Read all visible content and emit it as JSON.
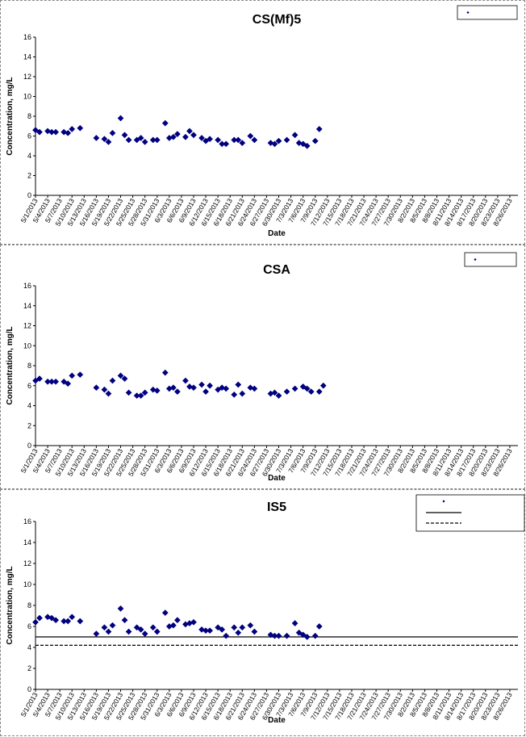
{
  "chart_data": [
    {
      "type": "scatter",
      "title": "CS(Mf)5",
      "xlabel": "Date",
      "ylabel": "Concentration, mg/L",
      "ylim": [
        0,
        16
      ],
      "yticks": [
        0,
        2,
        4,
        6,
        8,
        10,
        12,
        14,
        16
      ],
      "xlim": [
        "5/1/2013",
        "8/28/2013"
      ],
      "xticks": [
        "5/1/2013",
        "5/4/2013",
        "5/7/2013",
        "5/10/2013",
        "5/13/2013",
        "5/16/2013",
        "5/19/2013",
        "5/22/2013",
        "5/25/2013",
        "5/28/2013",
        "5/31/2013",
        "6/3/2013",
        "6/6/2013",
        "6/9/2013",
        "6/12/2013",
        "6/15/2013",
        "6/18/2013",
        "6/21/2013",
        "6/24/2013",
        "6/27/2013",
        "6/30/2013",
        "7/3/2013",
        "7/6/2013",
        "7/9/2013",
        "7/12/2013",
        "7/15/2013",
        "7/18/2013",
        "7/21/2013",
        "7/24/2013",
        "7/27/2013",
        "7/30/2013",
        "8/2/2013",
        "8/5/2013",
        "8/8/2013",
        "8/11/2013",
        "8/14/2013",
        "8/17/2013",
        "8/20/2013",
        "8/23/2013",
        "8/26/2013"
      ],
      "grid": false,
      "legend": "top-right",
      "series": [
        {
          "marker": "diamond",
          "color": "#000080",
          "points": [
            [
              "5/1/2013",
              6.6
            ],
            [
              "5/2/2013",
              6.4
            ],
            [
              "5/4/2013",
              6.5
            ],
            [
              "5/5/2013",
              6.4
            ],
            [
              "5/6/2013",
              6.4
            ],
            [
              "5/8/2013",
              6.4
            ],
            [
              "5/9/2013",
              6.3
            ],
            [
              "5/10/2013",
              6.7
            ],
            [
              "5/12/2013",
              6.8
            ],
            [
              "5/16/2013",
              5.8
            ],
            [
              "5/18/2013",
              5.7
            ],
            [
              "5/19/2013",
              5.4
            ],
            [
              "5/20/2013",
              6.3
            ],
            [
              "5/22/2013",
              7.8
            ],
            [
              "5/23/2013",
              6.1
            ],
            [
              "5/24/2013",
              5.6
            ],
            [
              "5/26/2013",
              5.6
            ],
            [
              "5/27/2013",
              5.8
            ],
            [
              "5/28/2013",
              5.4
            ],
            [
              "5/30/2013",
              5.6
            ],
            [
              "5/31/2013",
              5.6
            ],
            [
              "6/2/2013",
              7.3
            ],
            [
              "6/3/2013",
              5.8
            ],
            [
              "6/4/2013",
              5.9
            ],
            [
              "6/5/2013",
              6.2
            ],
            [
              "6/7/2013",
              5.9
            ],
            [
              "6/8/2013",
              6.5
            ],
            [
              "6/9/2013",
              6.1
            ],
            [
              "6/11/2013",
              5.8
            ],
            [
              "6/12/2013",
              5.5
            ],
            [
              "6/13/2013",
              5.7
            ],
            [
              "6/15/2013",
              5.6
            ],
            [
              "6/16/2013",
              5.2
            ],
            [
              "6/17/2013",
              5.2
            ],
            [
              "6/19/2013",
              5.6
            ],
            [
              "6/20/2013",
              5.6
            ],
            [
              "6/21/2013",
              5.3
            ],
            [
              "6/23/2013",
              6.0
            ],
            [
              "6/24/2013",
              5.6
            ],
            [
              "6/28/2013",
              5.3
            ],
            [
              "6/29/2013",
              5.2
            ],
            [
              "6/30/2013",
              5.5
            ],
            [
              "7/2/2013",
              5.6
            ],
            [
              "7/4/2013",
              6.1
            ],
            [
              "7/5/2013",
              5.3
            ],
            [
              "7/6/2013",
              5.2
            ],
            [
              "7/7/2013",
              5.0
            ],
            [
              "7/9/2013",
              5.5
            ],
            [
              "7/10/2013",
              6.7
            ]
          ]
        }
      ]
    },
    {
      "type": "scatter",
      "title": "CSA",
      "xlabel": "Date",
      "ylabel": "Concentration, mg/L",
      "ylim": [
        0,
        16
      ],
      "yticks": [
        0,
        2,
        4,
        6,
        8,
        10,
        12,
        14,
        16
      ],
      "xlim": [
        "5/1/2013",
        "8/28/2013"
      ],
      "xticks": [
        "5/1/2013",
        "5/4/2013",
        "5/7/2013",
        "5/10/2013",
        "5/13/2013",
        "5/16/2013",
        "5/19/2013",
        "5/22/2013",
        "5/25/2013",
        "5/28/2013",
        "5/31/2013",
        "6/3/2013",
        "6/6/2013",
        "6/9/2013",
        "6/12/2013",
        "6/15/2013",
        "6/18/2013",
        "6/21/2013",
        "6/24/2013",
        "6/27/2013",
        "6/30/2013",
        "7/3/2013",
        "7/6/2013",
        "7/9/2013",
        "7/12/2013",
        "7/15/2013",
        "7/18/2013",
        "7/21/2013",
        "7/24/2013",
        "7/27/2013",
        "7/30/2013",
        "8/2/2013",
        "8/5/2013",
        "8/8/2013",
        "8/11/2013",
        "8/14/2013",
        "8/17/2013",
        "8/20/2013",
        "8/23/2013",
        "8/26/2013"
      ],
      "grid": false,
      "legend": "top-right",
      "series": [
        {
          "marker": "diamond",
          "color": "#000080",
          "points": [
            [
              "5/1/2013",
              6.5
            ],
            [
              "5/2/2013",
              6.7
            ],
            [
              "5/4/2013",
              6.4
            ],
            [
              "5/5/2013",
              6.4
            ],
            [
              "5/6/2013",
              6.4
            ],
            [
              "5/8/2013",
              6.4
            ],
            [
              "5/9/2013",
              6.2
            ],
            [
              "5/10/2013",
              7.0
            ],
            [
              "5/12/2013",
              7.1
            ],
            [
              "5/16/2013",
              5.8
            ],
            [
              "5/18/2013",
              5.6
            ],
            [
              "5/19/2013",
              5.2
            ],
            [
              "5/20/2013",
              6.5
            ],
            [
              "5/22/2013",
              7.0
            ],
            [
              "5/23/2013",
              6.7
            ],
            [
              "5/24/2013",
              5.3
            ],
            [
              "5/26/2013",
              5.0
            ],
            [
              "5/27/2013",
              5.0
            ],
            [
              "5/28/2013",
              5.3
            ],
            [
              "5/30/2013",
              5.6
            ],
            [
              "5/31/2013",
              5.5
            ],
            [
              "6/2/2013",
              7.3
            ],
            [
              "6/3/2013",
              5.7
            ],
            [
              "6/4/2013",
              5.8
            ],
            [
              "6/5/2013",
              5.4
            ],
            [
              "6/7/2013",
              6.5
            ],
            [
              "6/8/2013",
              5.9
            ],
            [
              "6/9/2013",
              5.8
            ],
            [
              "6/11/2013",
              6.1
            ],
            [
              "6/12/2013",
              5.4
            ],
            [
              "6/13/2013",
              6.0
            ],
            [
              "6/15/2013",
              5.6
            ],
            [
              "6/16/2013",
              5.8
            ],
            [
              "6/17/2013",
              5.7
            ],
            [
              "6/19/2013",
              5.1
            ],
            [
              "6/20/2013",
              6.1
            ],
            [
              "6/21/2013",
              5.2
            ],
            [
              "6/23/2013",
              5.8
            ],
            [
              "6/24/2013",
              5.7
            ],
            [
              "6/28/2013",
              5.2
            ],
            [
              "6/29/2013",
              5.3
            ],
            [
              "6/30/2013",
              5.0
            ],
            [
              "7/2/2013",
              5.4
            ],
            [
              "7/4/2013",
              5.7
            ],
            [
              "7/6/2013",
              5.9
            ],
            [
              "7/7/2013",
              5.7
            ],
            [
              "7/8/2013",
              5.4
            ],
            [
              "7/10/2013",
              5.4
            ],
            [
              "7/11/2013",
              6.0
            ]
          ]
        }
      ]
    },
    {
      "type": "scatter",
      "title": "IS5",
      "xlabel": "Date",
      "ylabel": "Concentration, mg/L",
      "ylim": [
        0,
        16
      ],
      "yticks": [
        0,
        2,
        4,
        6,
        8,
        10,
        12,
        14,
        16
      ],
      "xlim": [
        "5/1/2013",
        "8/28/2013"
      ],
      "xticks": [
        "5/1/2013",
        "5/4/2013",
        "5/7/2013",
        "5/10/2013",
        "5/13/2013",
        "5/16/2013",
        "5/19/2013",
        "5/22/2013",
        "5/25/2013",
        "5/28/2013",
        "5/31/2013",
        "6/3/2013",
        "6/6/2013",
        "6/9/2013",
        "6/12/2013",
        "6/15/2013",
        "6/18/2013",
        "6/21/2013",
        "6/24/2013",
        "6/27/2013",
        "6/30/2013",
        "7/3/2013",
        "7/6/2013",
        "7/9/2013",
        "7/12/2013",
        "7/15/2013",
        "7/18/2013",
        "7/21/2013",
        "7/24/2013",
        "7/27/2013",
        "7/30/2013",
        "8/2/2013",
        "8/5/2013",
        "8/8/2013",
        "8/11/2013",
        "8/14/2013",
        "8/17/2013",
        "8/20/2013",
        "8/23/2013",
        "8/26/2013"
      ],
      "grid": false,
      "legend": "top-right",
      "hlines": [
        {
          "y": 5.0,
          "style": "solid"
        },
        {
          "y": 4.2,
          "style": "dashed"
        }
      ],
      "series": [
        {
          "marker": "diamond",
          "color": "#000080",
          "points": [
            [
              "5/1/2013",
              6.4
            ],
            [
              "5/2/2013",
              6.8
            ],
            [
              "5/4/2013",
              6.9
            ],
            [
              "5/5/2013",
              6.8
            ],
            [
              "5/6/2013",
              6.6
            ],
            [
              "5/8/2013",
              6.5
            ],
            [
              "5/9/2013",
              6.5
            ],
            [
              "5/10/2013",
              6.9
            ],
            [
              "5/12/2013",
              6.5
            ],
            [
              "5/16/2013",
              5.3
            ],
            [
              "5/18/2013",
              5.9
            ],
            [
              "5/19/2013",
              5.5
            ],
            [
              "5/20/2013",
              6.1
            ],
            [
              "5/22/2013",
              7.7
            ],
            [
              "5/23/2013",
              6.6
            ],
            [
              "5/24/2013",
              5.5
            ],
            [
              "5/26/2013",
              5.9
            ],
            [
              "5/27/2013",
              5.7
            ],
            [
              "5/28/2013",
              5.3
            ],
            [
              "5/30/2013",
              5.9
            ],
            [
              "5/31/2013",
              5.5
            ],
            [
              "6/2/2013",
              7.3
            ],
            [
              "6/3/2013",
              6.0
            ],
            [
              "6/4/2013",
              6.1
            ],
            [
              "6/5/2013",
              6.6
            ],
            [
              "6/7/2013",
              6.2
            ],
            [
              "6/8/2013",
              6.3
            ],
            [
              "6/9/2013",
              6.4
            ],
            [
              "6/11/2013",
              5.7
            ],
            [
              "6/12/2013",
              5.6
            ],
            [
              "6/13/2013",
              5.6
            ],
            [
              "6/15/2013",
              5.9
            ],
            [
              "6/16/2013",
              5.7
            ],
            [
              "6/17/2013",
              5.1
            ],
            [
              "6/19/2013",
              5.9
            ],
            [
              "6/20/2013",
              5.4
            ],
            [
              "6/21/2013",
              5.9
            ],
            [
              "6/23/2013",
              6.1
            ],
            [
              "6/24/2013",
              5.5
            ],
            [
              "6/28/2013",
              5.2
            ],
            [
              "6/29/2013",
              5.1
            ],
            [
              "6/30/2013",
              5.1
            ],
            [
              "7/2/2013",
              5.1
            ],
            [
              "7/4/2013",
              6.3
            ],
            [
              "7/5/2013",
              5.4
            ],
            [
              "7/6/2013",
              5.2
            ],
            [
              "7/7/2013",
              5.0
            ],
            [
              "7/9/2013",
              5.1
            ],
            [
              "7/10/2013",
              6.0
            ]
          ]
        }
      ]
    }
  ]
}
